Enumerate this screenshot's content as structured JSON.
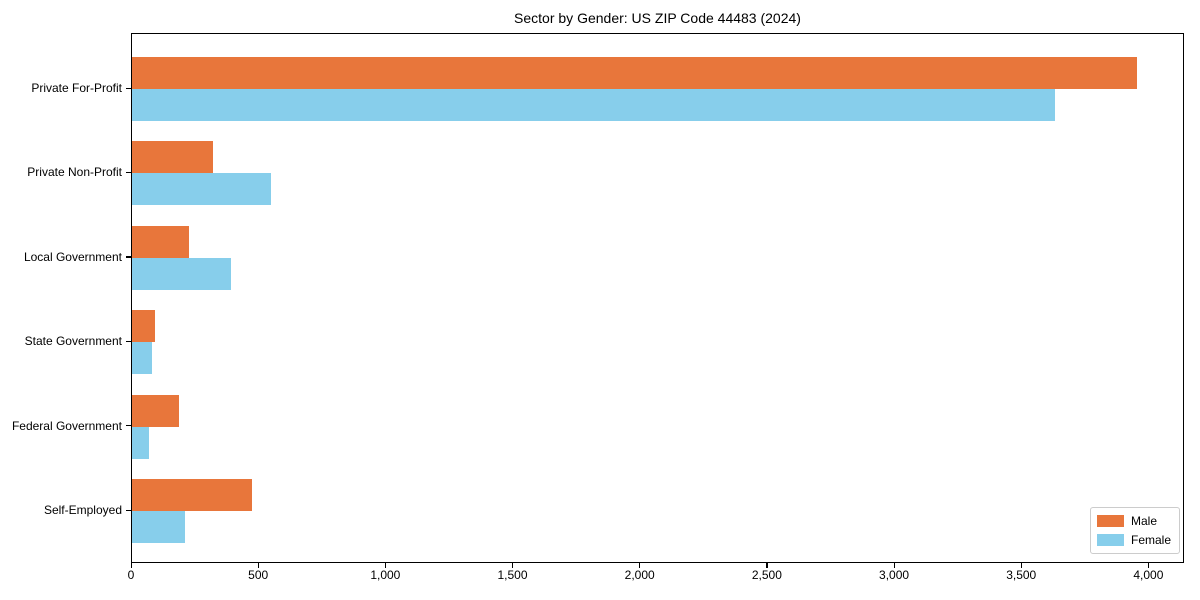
{
  "chart_data": {
    "type": "bar",
    "orientation": "horizontal",
    "title": "Sector by Gender: US ZIP Code 44483 (2024)",
    "categories": [
      "Private For-Profit",
      "Private Non-Profit",
      "Local Government",
      "State Government",
      "Federal Government",
      "Self-Employed"
    ],
    "series": [
      {
        "name": "Male",
        "color": "#E8763B",
        "values": [
          3950,
          320,
          225,
          90,
          185,
          470
        ]
      },
      {
        "name": "Female",
        "color": "#87CEEB",
        "values": [
          3630,
          545,
          390,
          80,
          65,
          210
        ]
      }
    ],
    "xlabel": "",
    "ylabel": "",
    "xlim": [
      0,
      4140
    ],
    "xticks": [
      0,
      500,
      1000,
      1500,
      2000,
      2500,
      3000,
      3500,
      4000
    ],
    "xtick_labels": [
      "0",
      "500",
      "1,000",
      "1,500",
      "2,000",
      "2,500",
      "3,000",
      "3,500",
      "4,000"
    ],
    "grid": false,
    "legend": {
      "position": "lower right",
      "entries": [
        "Male",
        "Female"
      ]
    }
  },
  "colors": {
    "male": "#E8763B",
    "female": "#87CEEB",
    "axis": "#000000",
    "background": "#ffffff",
    "legend_border": "#cccccc"
  }
}
